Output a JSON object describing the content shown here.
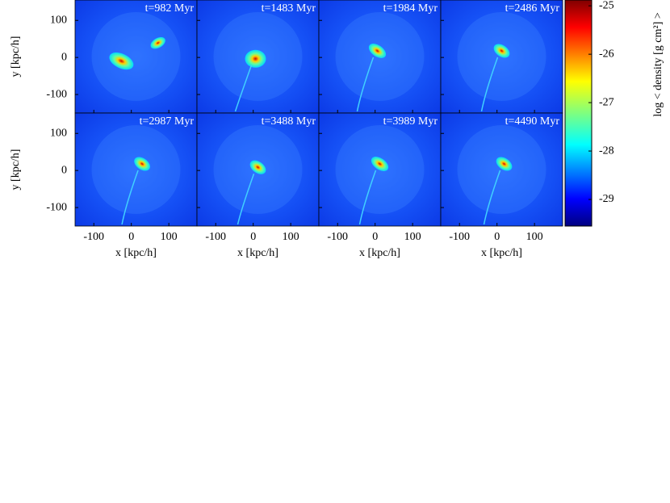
{
  "chart_data": {
    "type": "image-grid",
    "panels": [
      {
        "title": "t=982 Myr"
      },
      {
        "title": "t=1483 Myr"
      },
      {
        "title": "t=1984 Myr"
      },
      {
        "title": "t=2486 Myr"
      },
      {
        "title": "t=2987 Myr"
      },
      {
        "title": "t=3488 Myr"
      },
      {
        "title": "t=3989 Myr"
      },
      {
        "title": "t=4490 Myr"
      }
    ],
    "xlabel": "x [kpc/h]",
    "ylabel": "y [kpc/h]",
    "xlim": [
      -150,
      175
    ],
    "ylim": [
      -150,
      155
    ],
    "xticks": [
      -100,
      0,
      100
    ],
    "yticks": [
      -100,
      0,
      100
    ],
    "colorbar": {
      "label": "log < density [g cm²] >",
      "lim": [
        -29.55,
        -24.88
      ],
      "ticks": [
        -29,
        -28,
        -27,
        -26,
        -25
      ]
    }
  }
}
